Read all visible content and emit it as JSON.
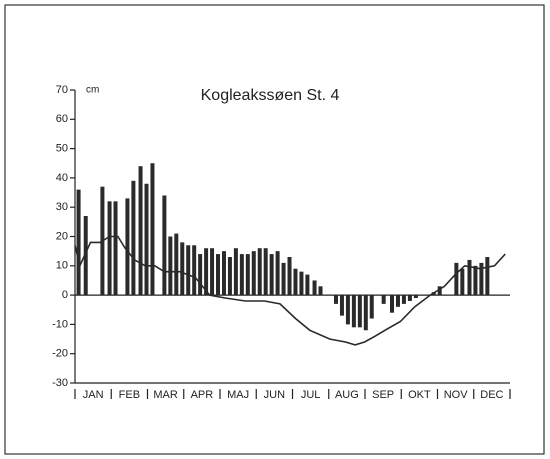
{
  "chart_data": {
    "type": "bar",
    "title": "Kogleakssøen St. 4",
    "y_unit": "cm",
    "categories": [
      "JAN",
      "FEB",
      "MAR",
      "APR",
      "MAJ",
      "JUN",
      "JUL",
      "AUG",
      "SEP",
      "OKT",
      "NOV",
      "DEC"
    ],
    "xlim": [
      0,
      365
    ],
    "ylim": [
      -30,
      70
    ],
    "yticks": [
      -30,
      -20,
      -10,
      0,
      10,
      20,
      30,
      40,
      50,
      60,
      70
    ],
    "color": "#2a2a2a",
    "x": [
      3,
      9,
      23,
      29,
      34,
      44,
      49,
      55,
      60,
      65,
      75,
      80,
      85,
      90,
      95,
      100,
      105,
      110,
      115,
      120,
      125,
      130,
      135,
      140,
      145,
      150,
      155,
      160,
      165,
      170,
      175,
      180,
      185,
      190,
      195,
      201,
      206,
      219,
      224,
      229,
      234,
      239,
      244,
      249,
      259,
      266,
      271,
      276,
      281,
      286,
      296,
      301,
      306,
      320,
      325,
      331,
      336,
      341,
      346
    ],
    "values": [
      36,
      27,
      37,
      32,
      32,
      33,
      39,
      44,
      38,
      45,
      34,
      20,
      21,
      18,
      17,
      17,
      14,
      16,
      16,
      14,
      15,
      13,
      16,
      14,
      14,
      15,
      16,
      16,
      14,
      15,
      11,
      13,
      9,
      8,
      7,
      5,
      3,
      -3,
      -7,
      -10,
      -11,
      -11,
      -12,
      -8,
      -3,
      -6,
      -4,
      -3,
      -2,
      -1,
      0,
      1,
      3,
      11,
      9,
      12,
      10,
      11,
      13
    ],
    "line": {
      "color": "#2a2a2a",
      "x": [
        0,
        4,
        13,
        21,
        29,
        36,
        42,
        50,
        59,
        67,
        75,
        88,
        101,
        113,
        126,
        143,
        159,
        172,
        185,
        197,
        214,
        227,
        235,
        243,
        252,
        260,
        273,
        285,
        298,
        310,
        319,
        327,
        340,
        352,
        361
      ],
      "values": [
        17,
        10,
        18,
        18,
        20,
        20,
        16,
        12,
        10,
        10,
        8,
        8,
        6,
        0,
        -1,
        -2,
        -2,
        -3,
        -8,
        -12,
        -15,
        -16,
        -17,
        -16,
        -14,
        -12,
        -9,
        -4,
        0,
        3,
        7,
        10,
        9,
        10,
        14
      ]
    }
  }
}
